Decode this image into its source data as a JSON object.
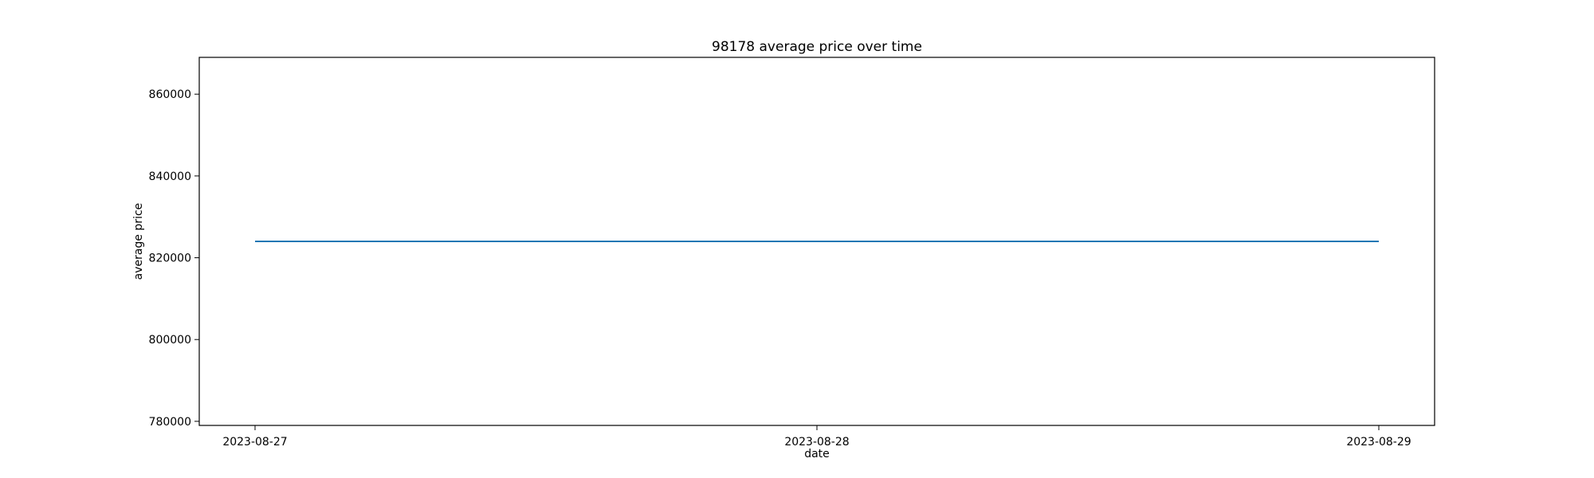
{
  "chart_data": {
    "type": "line",
    "title": "98178 average price over time",
    "xlabel": "date",
    "ylabel": "average price",
    "x": [
      "2023-08-27",
      "2023-08-28",
      "2023-08-29"
    ],
    "series": [
      {
        "values": [
          824000,
          824000,
          824000
        ],
        "color": "#1f77b4"
      }
    ],
    "ylim": [
      779000,
      869000
    ],
    "yticks": [
      780000,
      800000,
      820000,
      840000,
      860000
    ],
    "xticks": [
      "2023-08-27",
      "2023-08-28",
      "2023-08-29"
    ],
    "grid": false,
    "legend": "none"
  }
}
